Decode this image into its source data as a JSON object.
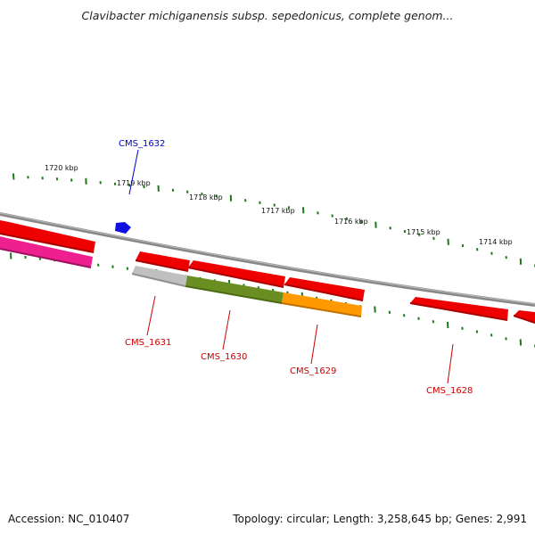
{
  "title": "Clavibacter michiganensis subsp. sepedonicus, complete genom...",
  "footer": {
    "accession": "Accession: NC_010407",
    "summary": "Topology: circular; Length: 3,258,645 bp; Genes: 2,991"
  },
  "colors": {
    "backbone": "#808080",
    "tick": "#1a7a1a",
    "label_red": "#cc0000",
    "label_blue": "#0000cc"
  },
  "scale_labels": [
    "1720 kbp",
    "1719 kbp",
    "1718 kbp",
    "1717 kbp",
    "1716 kbp",
    "1715 kbp",
    "1714 kbp"
  ],
  "genes": [
    {
      "label": "CMS_1632",
      "strand": "+",
      "color": "#1010e0",
      "label_color": "#0000cc"
    },
    {
      "label": "CMS_1631",
      "strand": "-",
      "color": "#b8b8b8",
      "label_color": "#cc0000"
    },
    {
      "label": "CMS_1630",
      "strand": "-",
      "color": "#6b8e23",
      "label_color": "#cc0000"
    },
    {
      "label": "CMS_1629",
      "strand": "-",
      "color": "#ff9900",
      "label_color": "#cc0000"
    },
    {
      "label": "CMS_1628",
      "strand": "-",
      "color": "#ee0000",
      "label_color": "#cc0000"
    }
  ],
  "unlabeled_features": [
    {
      "name": "red-feature-left-1",
      "color": "#ee0000"
    },
    {
      "name": "pink-feature-left",
      "color": "#ee1f8f"
    },
    {
      "name": "red-feature-2",
      "color": "#ee0000"
    },
    {
      "name": "red-feature-3",
      "color": "#ee0000"
    },
    {
      "name": "red-feature-4",
      "color": "#ee0000"
    },
    {
      "name": "red-feature-right-edge",
      "color": "#ee0000"
    }
  ]
}
